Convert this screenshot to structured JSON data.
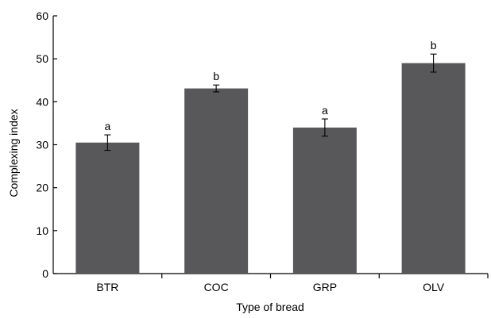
{
  "chart_data": {
    "type": "bar",
    "title": "",
    "xlabel": "Type of bread",
    "ylabel": "Complexing index",
    "ylim": [
      0,
      60
    ],
    "yticks": [
      0,
      10,
      20,
      30,
      40,
      50,
      60
    ],
    "categories": [
      "BTR",
      "COC",
      "GRP",
      "OLV"
    ],
    "values": [
      30.5,
      43.1,
      34.0,
      49.0
    ],
    "errors": [
      1.8,
      0.8,
      2.0,
      2.1
    ],
    "significance_labels": [
      "a",
      "b",
      "a",
      "b"
    ],
    "grid": false,
    "bar_color": "#58585a"
  }
}
